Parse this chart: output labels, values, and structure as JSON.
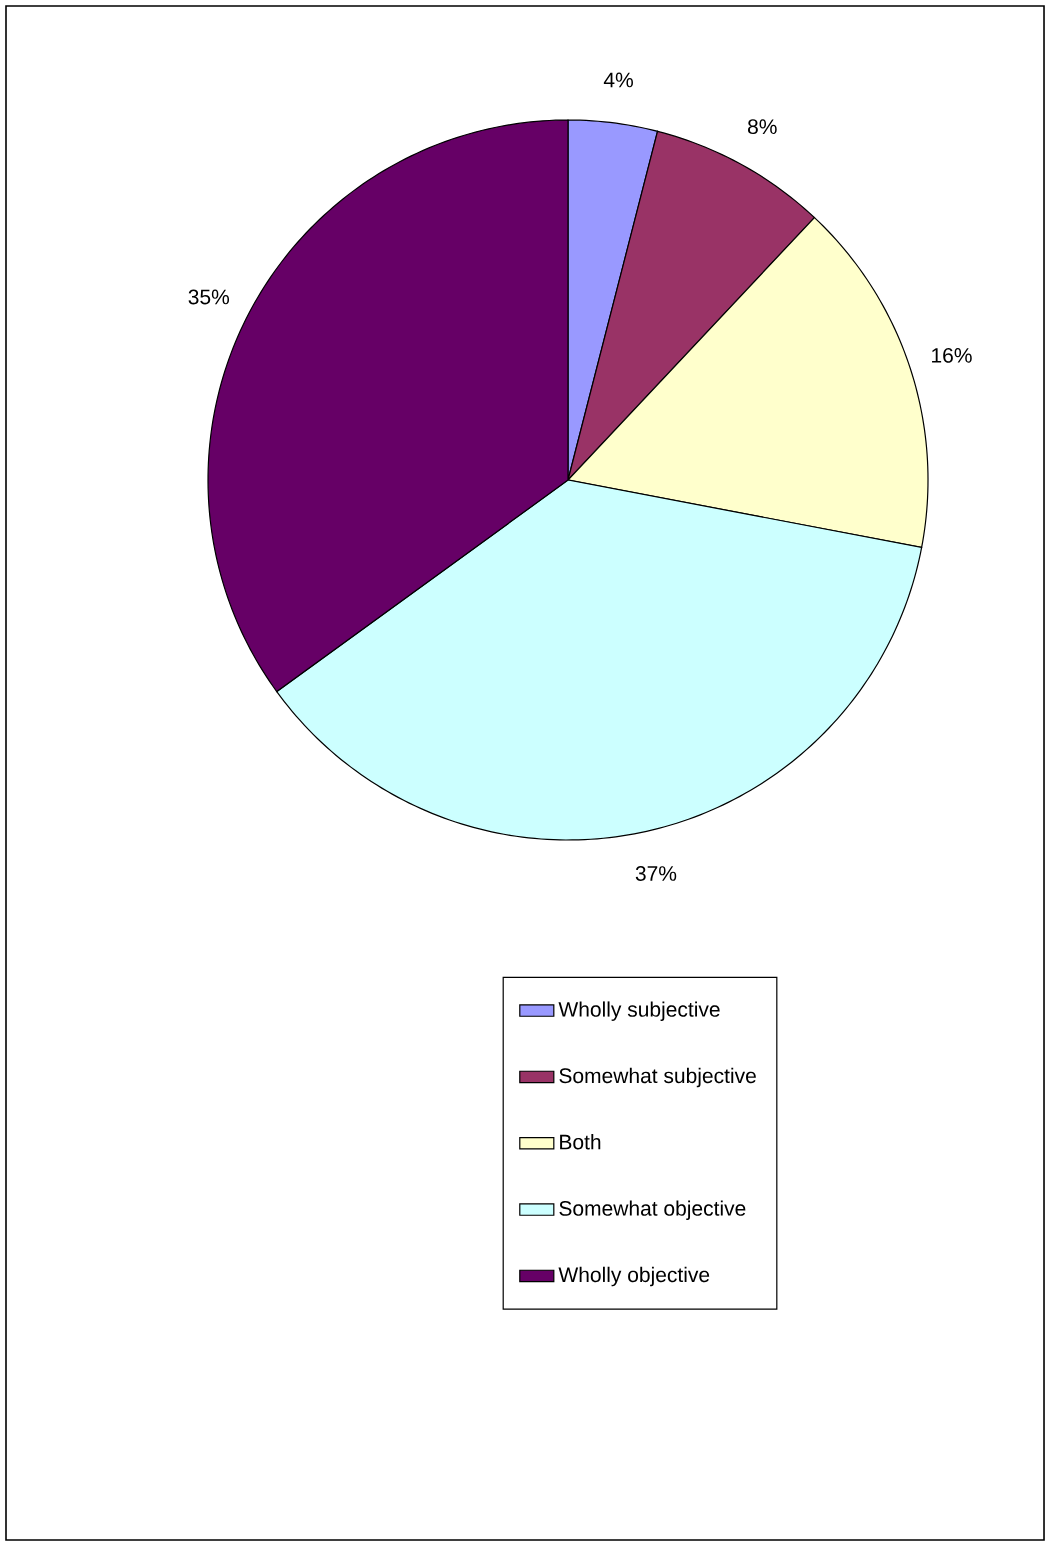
{
  "chart_data": {
    "type": "pie",
    "categories": [
      "Wholly subjective",
      "Somewhat subjective",
      "Both",
      "Somewhat objective",
      "Wholly objective"
    ],
    "values": [
      4,
      8,
      16,
      37,
      35
    ],
    "colors": [
      "#9999ff",
      "#993366",
      "#ffffcc",
      "#ccffff",
      "#660066"
    ],
    "value_labels": [
      "4%",
      "8%",
      "16%",
      "37%",
      "35%"
    ],
    "legend": "bottom"
  }
}
